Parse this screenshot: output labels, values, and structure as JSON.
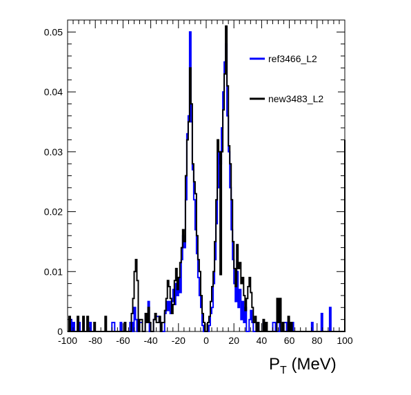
{
  "chart_data": {
    "type": "step-histogram",
    "xlabel_main": "P",
    "xlabel_sub": "T",
    "xlabel_unit": " (MeV)",
    "xlim": [
      -100,
      100
    ],
    "ylim": [
      0,
      0.052
    ],
    "xticks": [
      "-100",
      "-80",
      "-60",
      "-40",
      "-20",
      "0",
      "20",
      "40",
      "60",
      "80",
      "100"
    ],
    "yticks": [
      "0",
      "0.01",
      "0.02",
      "0.03",
      "0.04",
      "0.05"
    ],
    "legend": [
      {
        "name": "ref3466_L2",
        "color": "#0000ff"
      },
      {
        "name": "new3483_L2",
        "color": "#000000"
      }
    ],
    "series": [
      {
        "name": "ref3466_L2",
        "color": "#0000ff",
        "points": [
          [
            -100,
            0
          ],
          [
            -99,
            0.002
          ],
          [
            -97,
            0
          ],
          [
            -96,
            0.0015
          ],
          [
            -95,
            0
          ],
          [
            -92,
            0.0015
          ],
          [
            -91,
            0
          ],
          [
            -84,
            0.0015
          ],
          [
            -83,
            0
          ],
          [
            -68,
            0.0015
          ],
          [
            -66,
            0
          ],
          [
            -62,
            0.0015
          ],
          [
            -61,
            0
          ],
          [
            -55,
            0.0015
          ],
          [
            -53,
            0
          ],
          [
            -52,
            0.004
          ],
          [
            -51,
            0.002
          ],
          [
            -50,
            0
          ],
          [
            -48,
            0.0015
          ],
          [
            -46,
            0
          ],
          [
            -44,
            0.003
          ],
          [
            -43,
            0.0015
          ],
          [
            -42,
            0.005
          ],
          [
            -41,
            0
          ],
          [
            -38,
            0.002
          ],
          [
            -37,
            0.0025
          ],
          [
            -34,
            0.0015
          ],
          [
            -33,
            0
          ],
          [
            -30,
            0.003
          ],
          [
            -29,
            0.005
          ],
          [
            -28,
            0.0035
          ],
          [
            -27,
            0.005
          ],
          [
            -26,
            0.003
          ],
          [
            -25,
            0.005
          ],
          [
            -24,
            0.007
          ],
          [
            -23,
            0.0045
          ],
          [
            -22,
            0.008
          ],
          [
            -21,
            0.006
          ],
          [
            -20,
            0.009
          ],
          [
            -19,
            0.0065
          ],
          [
            -18,
            0.012
          ],
          [
            -17,
            0.016
          ],
          [
            -16,
            0.014
          ],
          [
            -15,
            0.022
          ],
          [
            -14,
            0.033
          ],
          [
            -13,
            0.036
          ],
          [
            -12,
            0.05
          ],
          [
            -11,
            0.035
          ],
          [
            -10,
            0.027
          ],
          [
            -9,
            0.022
          ],
          [
            -8,
            0.017
          ],
          [
            -7,
            0.013
          ],
          [
            -6,
            0.009
          ],
          [
            -5,
            0.006
          ],
          [
            -4,
            0.004
          ],
          [
            -3,
            0.001
          ],
          [
            -2,
            0
          ],
          [
            2,
            0.001
          ],
          [
            3,
            0.003
          ],
          [
            4,
            0.004
          ],
          [
            5,
            0.008
          ],
          [
            6,
            0.012
          ],
          [
            7,
            0.018
          ],
          [
            8,
            0.024
          ],
          [
            9,
            0.03
          ],
          [
            10,
            0.028
          ],
          [
            11,
            0.034
          ],
          [
            12,
            0.04
          ],
          [
            13,
            0.045
          ],
          [
            14,
            0.048
          ],
          [
            15,
            0.036
          ],
          [
            16,
            0.03
          ],
          [
            17,
            0.024
          ],
          [
            18,
            0.017
          ],
          [
            19,
            0.012
          ],
          [
            20,
            0.008
          ],
          [
            21,
            0.005
          ],
          [
            22,
            0.01
          ],
          [
            23,
            0.004
          ],
          [
            24,
            0.007
          ],
          [
            25,
            0.002
          ],
          [
            26,
            0.005
          ],
          [
            27,
            0.0015
          ],
          [
            28,
            0.004
          ],
          [
            29,
            0
          ],
          [
            31,
            0.002
          ],
          [
            32,
            0.0035
          ],
          [
            33,
            0.0015
          ],
          [
            34,
            0
          ],
          [
            36,
            0.0015
          ],
          [
            38,
            0
          ],
          [
            41,
            0.0015
          ],
          [
            42,
            0
          ],
          [
            48,
            0.0015
          ],
          [
            50,
            0
          ],
          [
            53,
            0.004
          ],
          [
            54,
            0
          ],
          [
            56,
            0.0015
          ],
          [
            58,
            0
          ],
          [
            62,
            0.0015
          ],
          [
            63,
            0
          ],
          [
            75,
            0
          ],
          [
            76,
            0.0015
          ],
          [
            77,
            0
          ],
          [
            82,
            0
          ],
          [
            83,
            0.003
          ],
          [
            84,
            0
          ],
          [
            89,
            0.004
          ],
          [
            90,
            0
          ],
          [
            100,
            0
          ]
        ]
      },
      {
        "name": "new3483_L2",
        "color": "#000000",
        "points": [
          [
            -100,
            0
          ],
          [
            -99,
            0.0025
          ],
          [
            -98,
            0
          ],
          [
            -93,
            0.0025
          ],
          [
            -92,
            0
          ],
          [
            -89,
            0.0025
          ],
          [
            -88,
            0
          ],
          [
            -86,
            0.0025
          ],
          [
            -85,
            0
          ],
          [
            -81,
            0.0015
          ],
          [
            -80,
            0
          ],
          [
            -73,
            0.0025
          ],
          [
            -72,
            0
          ],
          [
            -59,
            0.0015
          ],
          [
            -58,
            0
          ],
          [
            -54,
            0.003
          ],
          [
            -53,
            0.0055
          ],
          [
            -52,
            0.01
          ],
          [
            -51,
            0.012
          ],
          [
            -50,
            0.0085
          ],
          [
            -49,
            0
          ],
          [
            -48,
            0.002
          ],
          [
            -46,
            0
          ],
          [
            -44,
            0.003
          ],
          [
            -43,
            0.0015
          ],
          [
            -42,
            0.004
          ],
          [
            -41,
            0.0015
          ],
          [
            -40,
            0
          ],
          [
            -38,
            0.002
          ],
          [
            -37,
            0.003
          ],
          [
            -36,
            0.0015
          ],
          [
            -34,
            0.0025
          ],
          [
            -33,
            0
          ],
          [
            -32,
            0.0015
          ],
          [
            -30,
            0.0035
          ],
          [
            -29,
            0.0055
          ],
          [
            -28,
            0.0085
          ],
          [
            -27,
            0.0075
          ],
          [
            -26,
            0.0055
          ],
          [
            -25,
            0.003
          ],
          [
            -24,
            0.0045
          ],
          [
            -23,
            0.0085
          ],
          [
            -22,
            0.0105
          ],
          [
            -21,
            0.007
          ],
          [
            -20,
            0.009
          ],
          [
            -19,
            0.0115
          ],
          [
            -18,
            0.014
          ],
          [
            -17,
            0.017
          ],
          [
            -16,
            0.015
          ],
          [
            -15,
            0.026
          ],
          [
            -14,
            0.032
          ],
          [
            -13,
            0.035
          ],
          [
            -12,
            0.044
          ],
          [
            -11,
            0.038
          ],
          [
            -10,
            0.028
          ],
          [
            -9,
            0.025
          ],
          [
            -8,
            0.023
          ],
          [
            -7,
            0.016
          ],
          [
            -6,
            0.012
          ],
          [
            -5,
            0.01
          ],
          [
            -4,
            0.006
          ],
          [
            -3,
            0.003
          ],
          [
            -2,
            0.0015
          ],
          [
            -1,
            0
          ],
          [
            1,
            0.0015
          ],
          [
            2,
            0.0025
          ],
          [
            3,
            0.005
          ],
          [
            4,
            0.0075
          ],
          [
            5,
            0.01
          ],
          [
            6,
            0.015
          ],
          [
            7,
            0.022
          ],
          [
            8,
            0.032
          ],
          [
            9,
            0.03
          ],
          [
            10,
            0.0095
          ],
          [
            11,
            0.03
          ],
          [
            12,
            0.037
          ],
          [
            13,
            0.043
          ],
          [
            14,
            0.051
          ],
          [
            15,
            0.041
          ],
          [
            16,
            0.031
          ],
          [
            17,
            0.028
          ],
          [
            18,
            0.022
          ],
          [
            19,
            0.015
          ],
          [
            20,
            0.0105
          ],
          [
            21,
            0.0075
          ],
          [
            22,
            0.0145
          ],
          [
            23,
            0.0105
          ],
          [
            24,
            0.0115
          ],
          [
            25,
            0.008
          ],
          [
            26,
            0.009
          ],
          [
            27,
            0.006
          ],
          [
            28,
            0.0035
          ],
          [
            29,
            0.0055
          ],
          [
            30,
            0.0075
          ],
          [
            31,
            0.009
          ],
          [
            32,
            0.0065
          ],
          [
            33,
            0.004
          ],
          [
            34,
            0.0015
          ],
          [
            35,
            0.0025
          ],
          [
            36,
            0
          ],
          [
            37,
            0.0015
          ],
          [
            38,
            0
          ],
          [
            41,
            0.002
          ],
          [
            42,
            0
          ],
          [
            43,
            0.0015
          ],
          [
            44,
            0
          ],
          [
            51,
            0.0055
          ],
          [
            52,
            0.0015
          ],
          [
            53,
            0.0055
          ],
          [
            54,
            0
          ],
          [
            55,
            0.0015
          ],
          [
            56,
            0
          ],
          [
            59,
            0.0025
          ],
          [
            60,
            0
          ],
          [
            61,
            0.0015
          ],
          [
            62,
            0
          ],
          [
            100,
            0
          ],
          [
            100,
            0.032
          ]
        ]
      }
    ]
  }
}
